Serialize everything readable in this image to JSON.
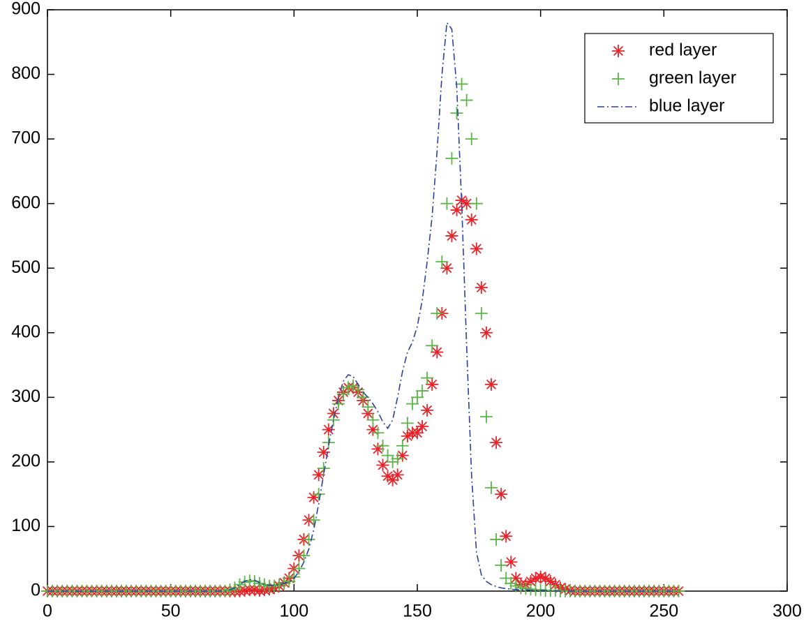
{
  "chart_data": {
    "type": "line",
    "x": [
      0,
      2,
      4,
      6,
      8,
      10,
      12,
      14,
      16,
      18,
      20,
      22,
      24,
      26,
      28,
      30,
      32,
      34,
      36,
      38,
      40,
      42,
      44,
      46,
      48,
      50,
      52,
      54,
      56,
      58,
      60,
      62,
      64,
      66,
      68,
      70,
      72,
      74,
      76,
      78,
      80,
      82,
      84,
      86,
      88,
      90,
      92,
      94,
      96,
      98,
      100,
      102,
      104,
      106,
      108,
      110,
      112,
      114,
      116,
      118,
      120,
      122,
      124,
      126,
      128,
      130,
      132,
      134,
      136,
      138,
      140,
      142,
      144,
      146,
      148,
      150,
      152,
      154,
      156,
      158,
      160,
      162,
      164,
      166,
      168,
      170,
      172,
      174,
      176,
      178,
      180,
      182,
      184,
      186,
      188,
      190,
      192,
      194,
      196,
      198,
      200,
      202,
      204,
      206,
      208,
      210,
      212,
      214,
      216,
      218,
      220,
      222,
      224,
      226,
      228,
      230,
      232,
      234,
      236,
      238,
      240,
      242,
      244,
      246,
      248,
      250,
      252,
      254,
      256
    ],
    "series": [
      {
        "name": "red layer",
        "color": "#e8232a",
        "marker": "*",
        "linestyle": "none",
        "values": [
          0,
          0,
          0,
          0,
          0,
          0,
          0,
          0,
          0,
          0,
          0,
          0,
          0,
          0,
          0,
          0,
          0,
          0,
          0,
          0,
          0,
          0,
          0,
          0,
          0,
          0,
          0,
          0,
          0,
          0,
          0,
          0,
          0,
          0,
          0,
          0,
          0,
          0,
          0,
          0,
          1,
          2,
          2,
          1,
          2,
          3,
          5,
          8,
          13,
          20,
          35,
          55,
          80,
          110,
          145,
          180,
          215,
          250,
          275,
          295,
          308,
          315,
          315,
          308,
          295,
          275,
          250,
          220,
          195,
          178,
          172,
          180,
          210,
          240,
          245,
          245,
          255,
          280,
          320,
          370,
          430,
          500,
          550,
          590,
          605,
          600,
          575,
          530,
          470,
          400,
          320,
          230,
          150,
          85,
          45,
          20,
          10,
          10,
          15,
          20,
          22,
          20,
          15,
          10,
          5,
          3,
          1,
          0,
          0,
          0,
          0,
          0,
          0,
          0,
          0,
          0,
          0,
          0,
          0,
          0,
          0,
          0,
          0,
          0,
          0,
          0,
          0,
          0,
          0
        ]
      },
      {
        "name": "green layer",
        "color": "#5ab547",
        "marker": "+",
        "linestyle": "none",
        "values": [
          0,
          0,
          0,
          0,
          0,
          0,
          0,
          0,
          0,
          0,
          0,
          0,
          0,
          0,
          0,
          0,
          0,
          0,
          0,
          0,
          0,
          0,
          0,
          0,
          0,
          0,
          0,
          0,
          0,
          0,
          0,
          0,
          0,
          0,
          0,
          0,
          0,
          2,
          5,
          10,
          14,
          16,
          15,
          12,
          10,
          8,
          8,
          10,
          12,
          15,
          22,
          35,
          55,
          80,
          110,
          150,
          190,
          230,
          265,
          290,
          305,
          315,
          318,
          312,
          300,
          285,
          265,
          245,
          225,
          210,
          200,
          205,
          225,
          260,
          290,
          300,
          310,
          330,
          380,
          430,
          510,
          600,
          670,
          740,
          785,
          760,
          700,
          600,
          430,
          270,
          160,
          80,
          40,
          20,
          12,
          8,
          5,
          4,
          3,
          2,
          2,
          1,
          1,
          1,
          0,
          0,
          0,
          0,
          0,
          0,
          0,
          0,
          0,
          0,
          0,
          0,
          0,
          0,
          0,
          0,
          0,
          0,
          0,
          0,
          0,
          0,
          0,
          0,
          0
        ]
      },
      {
        "name": "blue layer",
        "color": "#2b3fa0",
        "marker": "none",
        "linestyle": "-.",
        "values": [
          0,
          0,
          0,
          0,
          0,
          0,
          0,
          0,
          0,
          0,
          0,
          0,
          0,
          0,
          0,
          0,
          0,
          0,
          0,
          0,
          0,
          0,
          0,
          0,
          0,
          0,
          0,
          0,
          0,
          0,
          0,
          0,
          0,
          0,
          0,
          0,
          0,
          2,
          5,
          10,
          15,
          18,
          17,
          13,
          10,
          9,
          9,
          10,
          12,
          14,
          20,
          30,
          45,
          65,
          95,
          135,
          180,
          225,
          265,
          300,
          325,
          335,
          332,
          320,
          308,
          300,
          290,
          278,
          262,
          252,
          265,
          300,
          340,
          370,
          385,
          410,
          450,
          510,
          580,
          680,
          800,
          880,
          870,
          780,
          600,
          380,
          180,
          60,
          25,
          15,
          10,
          7,
          5,
          4,
          3,
          2,
          2,
          2,
          1,
          1,
          1,
          1,
          1,
          0,
          0,
          0,
          0,
          0,
          0,
          0,
          0,
          0,
          0,
          0,
          0,
          0,
          0,
          0,
          0,
          0,
          0,
          0,
          0,
          0,
          0,
          0,
          0,
          0,
          0
        ]
      }
    ],
    "xlim": [
      0,
      300
    ],
    "xticks": [
      0,
      50,
      100,
      150,
      200,
      250,
      300
    ],
    "ylim": [
      0,
      900
    ],
    "yticks": [
      0,
      100,
      200,
      300,
      400,
      500,
      600,
      700,
      800,
      900
    ],
    "grid": false,
    "legend": "northeast"
  }
}
